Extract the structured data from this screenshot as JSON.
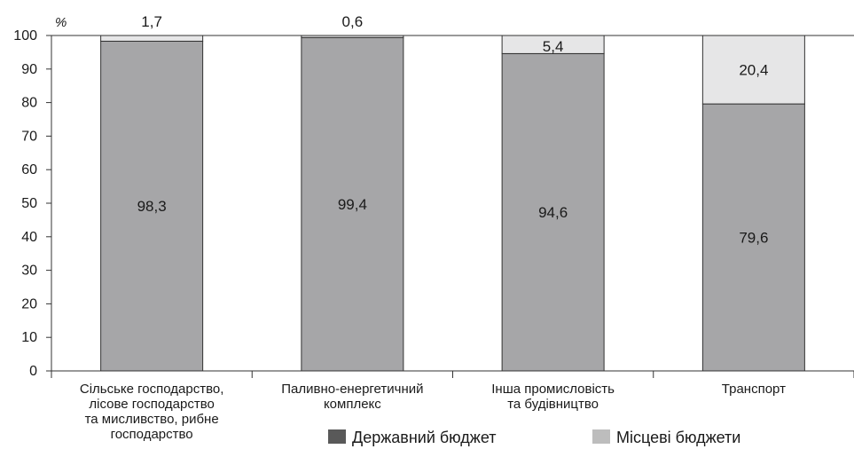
{
  "chart_data": {
    "type": "bar",
    "stacked": true,
    "y_unit": "%",
    "ylim": [
      0,
      100
    ],
    "yticks": [
      "0",
      "10",
      "20",
      "30",
      "40",
      "50",
      "60",
      "70",
      "80",
      "90",
      "100"
    ],
    "categories": [
      [
        "Сільське господарство,",
        "лісове господарство",
        "та мисливство, рибне",
        "господарство"
      ],
      [
        "Паливно-енергетичний",
        "комплекс"
      ],
      [
        "Інша промисловість",
        "та будівництво"
      ],
      [
        "Транспорт"
      ]
    ],
    "series": [
      {
        "name": "Державний бюджет",
        "color": "#a6a6a8",
        "values": [
          98.3,
          99.4,
          94.6,
          79.6
        ],
        "labels": [
          "98,3",
          "99,4",
          "94,6",
          "79,6"
        ]
      },
      {
        "name": "Місцеві бюджети",
        "color": "#e6e6e7",
        "values": [
          1.7,
          0.6,
          5.4,
          20.4
        ],
        "labels": [
          "1,7",
          "0,6",
          "5,4",
          "20,4"
        ]
      }
    ],
    "legend": {
      "position": "bottom-right",
      "swatch_colors": [
        "#595959",
        "#bdbdbd"
      ]
    },
    "grid": false
  }
}
